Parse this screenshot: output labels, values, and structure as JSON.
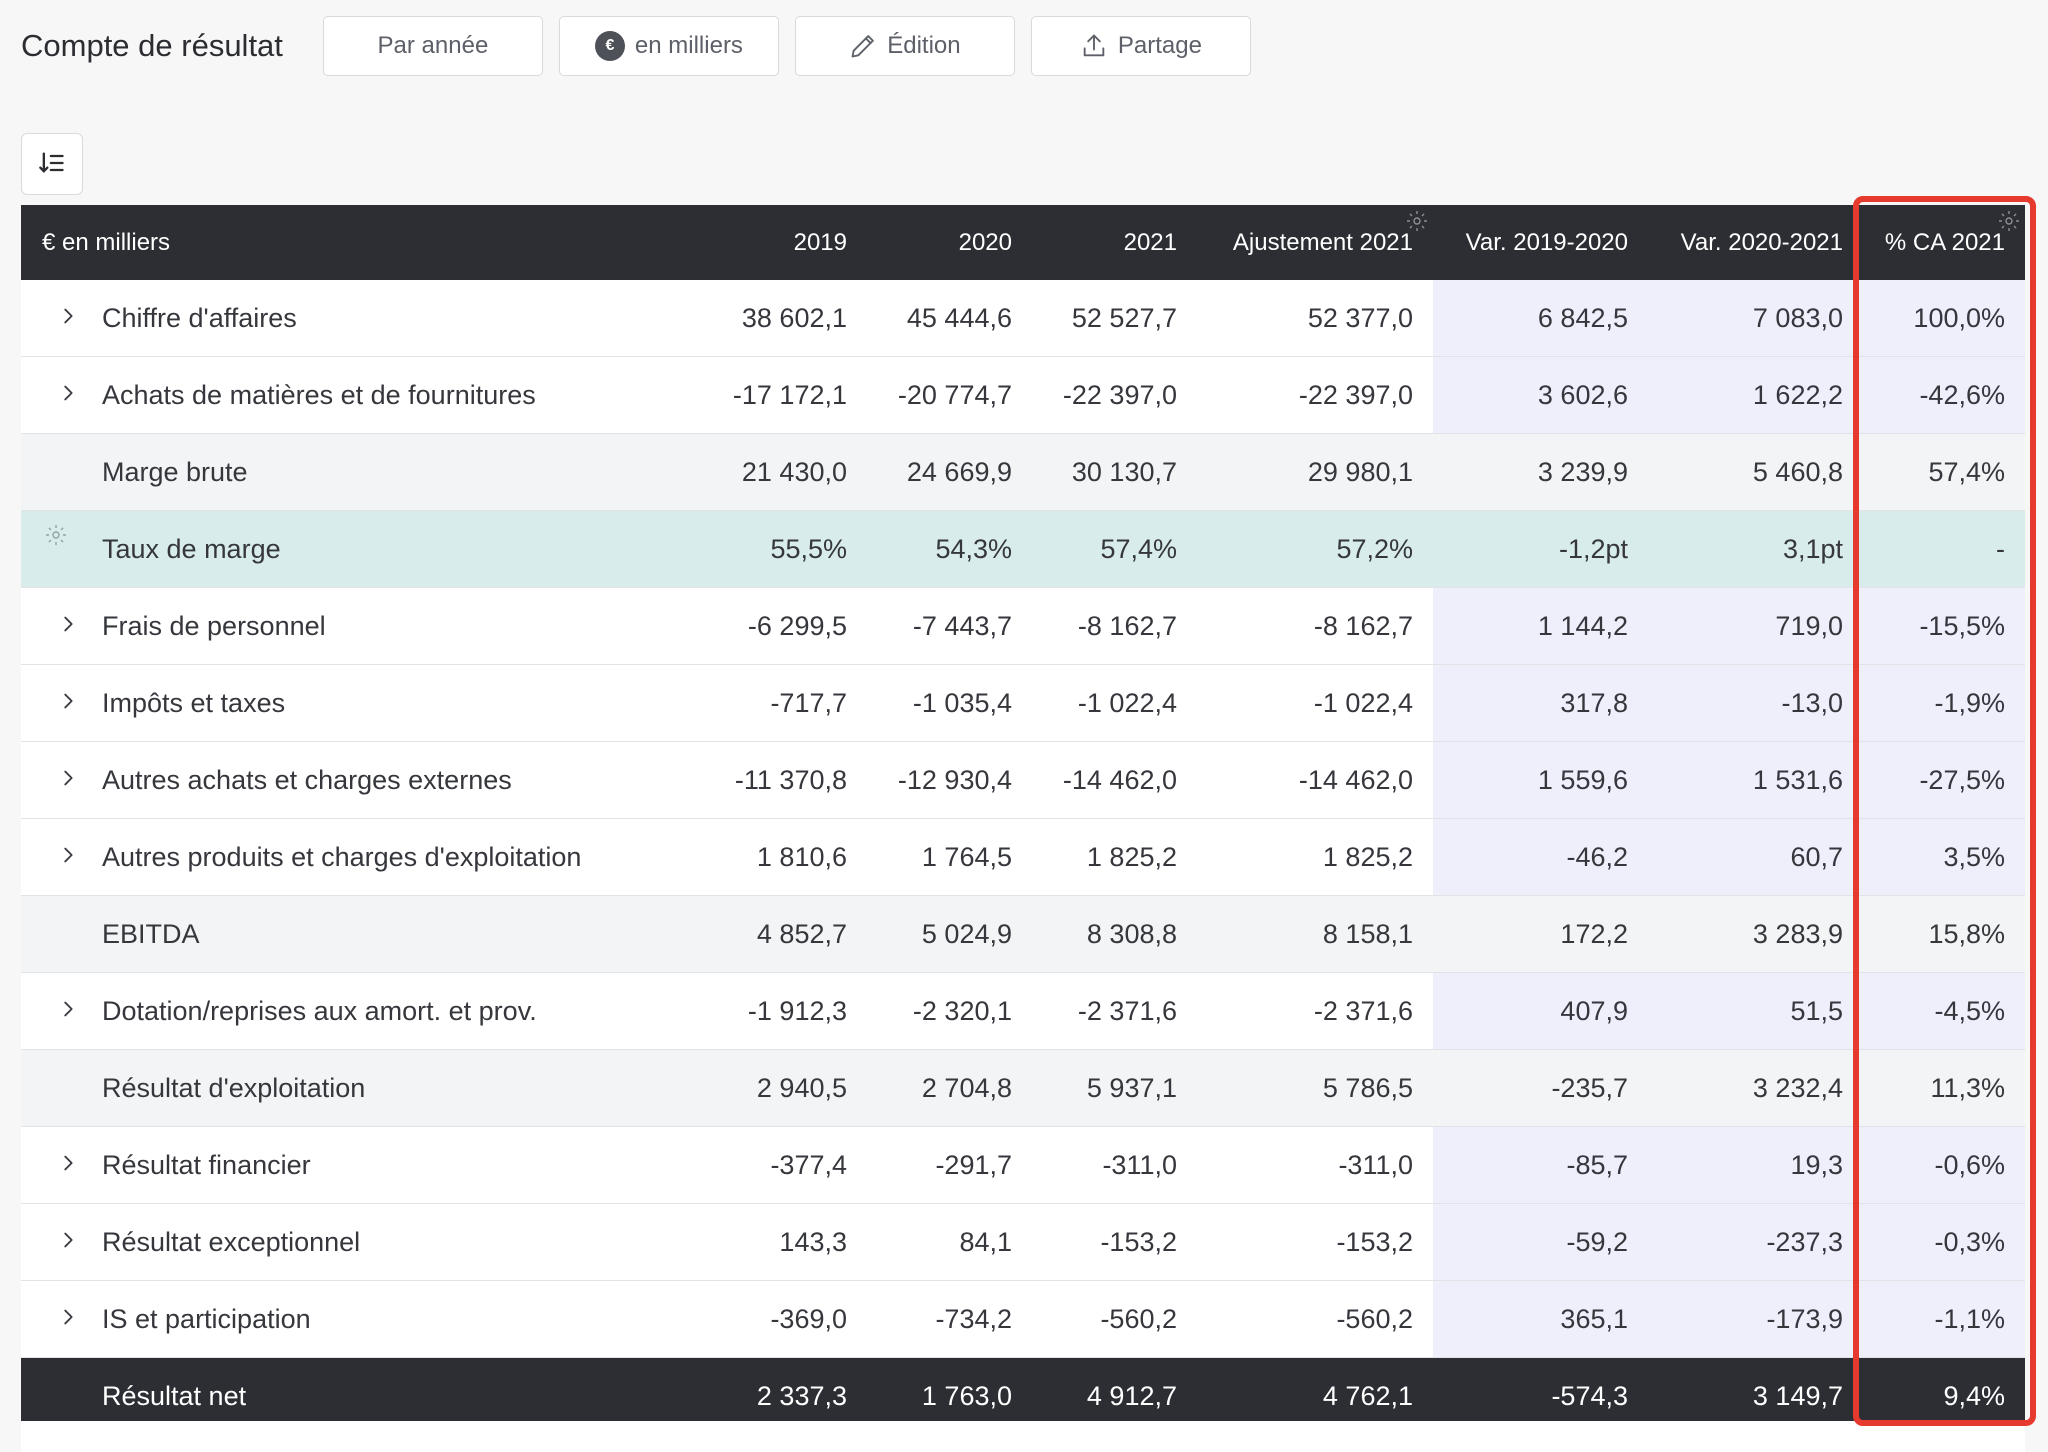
{
  "title": "Compte de résultat",
  "toolbar": {
    "period": "Par année",
    "units": "en milliers",
    "units_badge": "€",
    "edit": "Édition",
    "share": "Partage"
  },
  "table": {
    "columns": [
      "€ en milliers",
      "2019",
      "2020",
      "2021",
      "Ajustement 2021",
      "Var. 2019-2020",
      "Var. 2020-2021",
      "% CA 2021"
    ],
    "rows": [
      {
        "label": "Chiffre d'affaires",
        "type": "normal",
        "expandable": true,
        "values": [
          "38 602,1",
          "45 444,6",
          "52 527,7",
          "52 377,0",
          "6 842,5",
          "7 083,0",
          "100,0%"
        ]
      },
      {
        "label": "Achats de matières et de fournitures",
        "type": "normal",
        "expandable": true,
        "values": [
          "-17 172,1",
          "-20 774,7",
          "-22 397,0",
          "-22 397,0",
          "3 602,6",
          "1 622,2",
          "-42,6%"
        ]
      },
      {
        "label": "Marge brute",
        "type": "sub",
        "expandable": false,
        "values": [
          "21 430,0",
          "24 669,9",
          "30 130,7",
          "29 980,1",
          "3 239,9",
          "5 460,8",
          "57,4%"
        ]
      },
      {
        "label": "Taux de marge",
        "type": "rate",
        "expandable": false,
        "values": [
          "55,5%",
          "54,3%",
          "57,4%",
          "57,2%",
          "-1,2pt",
          "3,1pt",
          "-"
        ]
      },
      {
        "label": "Frais de personnel",
        "type": "normal",
        "expandable": true,
        "values": [
          "-6 299,5",
          "-7 443,7",
          "-8 162,7",
          "-8 162,7",
          "1 144,2",
          "719,0",
          "-15,5%"
        ]
      },
      {
        "label": "Impôts et taxes",
        "type": "normal",
        "expandable": true,
        "values": [
          "-717,7",
          "-1 035,4",
          "-1 022,4",
          "-1 022,4",
          "317,8",
          "-13,0",
          "-1,9%"
        ]
      },
      {
        "label": "Autres achats et charges externes",
        "type": "normal",
        "expandable": true,
        "values": [
          "-11 370,8",
          "-12 930,4",
          "-14 462,0",
          "-14 462,0",
          "1 559,6",
          "1 531,6",
          "-27,5%"
        ]
      },
      {
        "label": "Autres produits et charges d'exploitation",
        "type": "normal",
        "expandable": true,
        "values": [
          "1 810,6",
          "1 764,5",
          "1 825,2",
          "1 825,2",
          "-46,2",
          "60,7",
          "3,5%"
        ]
      },
      {
        "label": "EBITDA",
        "type": "sub",
        "expandable": false,
        "values": [
          "4 852,7",
          "5 024,9",
          "8 308,8",
          "8 158,1",
          "172,2",
          "3 283,9",
          "15,8%"
        ]
      },
      {
        "label": "Dotation/reprises aux amort. et prov.",
        "type": "normal",
        "expandable": true,
        "values": [
          "-1 912,3",
          "-2 320,1",
          "-2 371,6",
          "-2 371,6",
          "407,9",
          "51,5",
          "-4,5%"
        ]
      },
      {
        "label": "Résultat d'exploitation",
        "type": "sub",
        "expandable": false,
        "values": [
          "2 940,5",
          "2 704,8",
          "5 937,1",
          "5 786,5",
          "-235,7",
          "3 232,4",
          "11,3%"
        ]
      },
      {
        "label": "Résultat financier",
        "type": "normal",
        "expandable": true,
        "values": [
          "-377,4",
          "-291,7",
          "-311,0",
          "-311,0",
          "-85,7",
          "19,3",
          "-0,6%"
        ]
      },
      {
        "label": "Résultat exceptionnel",
        "type": "normal",
        "expandable": true,
        "values": [
          "143,3",
          "84,1",
          "-153,2",
          "-153,2",
          "-59,2",
          "-237,3",
          "-0,3%"
        ]
      },
      {
        "label": "IS et participation",
        "type": "normal",
        "expandable": true,
        "values": [
          "-369,0",
          "-734,2",
          "-560,2",
          "-560,2",
          "365,1",
          "-173,9",
          "-1,1%"
        ]
      },
      {
        "label": "Résultat net",
        "type": "total",
        "expandable": false,
        "values": [
          "2 337,3",
          "1 763,0",
          "4 912,7",
          "4 762,1",
          "-574,3",
          "3 149,7",
          "9,4%"
        ]
      }
    ]
  },
  "colors": {
    "header_bg": "#2c2e33",
    "variance_bg": "#eeeffb",
    "subtotal_bg": "#f3f4f6",
    "rate_bg": "#d9ecec",
    "highlight": "#e63a2e"
  },
  "icons": [
    "pencil-icon",
    "upload-icon",
    "sort-list-icon",
    "gear-icon",
    "chevron-right-icon"
  ]
}
